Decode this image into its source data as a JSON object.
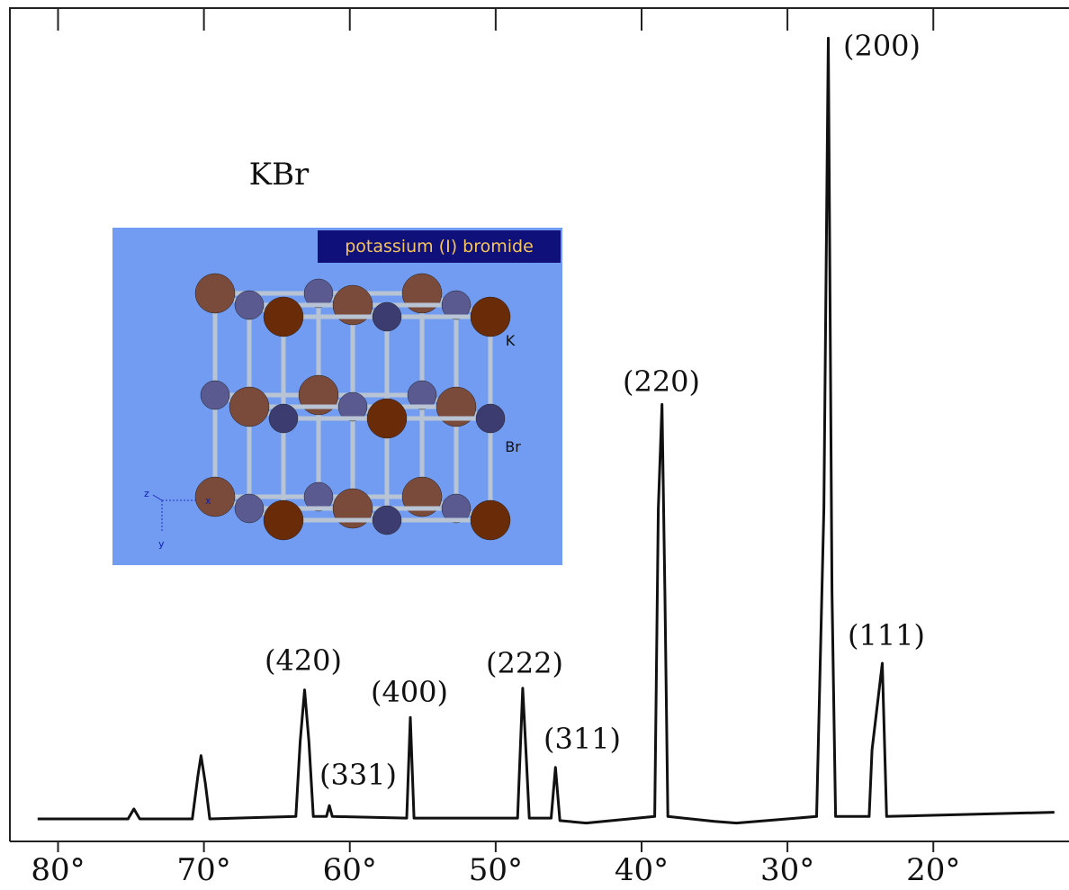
{
  "chart_data": {
    "type": "line",
    "title": "KBr",
    "color": "#111111",
    "x": [
      81.4,
      75.2,
      74.8,
      74.4,
      70.8,
      70.4,
      70.2,
      69.9,
      69.6,
      63.7,
      63.4,
      63.1,
      62.8,
      62.5,
      61.6,
      61.4,
      61.2,
      56.1,
      55.85,
      55.6,
      48.5,
      48.15,
      47.9,
      47.7,
      46.2,
      45.9,
      45.6,
      43.8,
      39.1,
      38.85,
      38.6,
      38.4,
      38.2,
      35,
      33.5,
      28,
      27.5,
      27.2,
      26.95,
      26.7,
      24.4,
      24.2,
      23.5,
      23.2,
      11.7
    ],
    "values": [
      2.7,
      2.7,
      3.9,
      2.7,
      2.7,
      8,
      10.3,
      7,
      2.7,
      3,
      12,
      18.2,
      12,
      3,
      3,
      4.3,
      3,
      2.8,
      14.9,
      2.8,
      2.8,
      18.4,
      10,
      2.8,
      2.8,
      8.9,
      2.5,
      2.2,
      3,
      40,
      52.5,
      30,
      3,
      2.4,
      2.2,
      3,
      40,
      96.5,
      30,
      3,
      3,
      11,
      21.4,
      3,
      3.5
    ],
    "xlim": [
      83.3,
      10.7
    ],
    "ylim": [
      0,
      100
    ],
    "xticks": [
      {
        "value": 80,
        "label": "80°"
      },
      {
        "value": 70,
        "label": "70°"
      },
      {
        "value": 60,
        "label": "60°"
      },
      {
        "value": 50,
        "label": "50°"
      },
      {
        "value": 40,
        "label": "40°"
      },
      {
        "value": 30,
        "label": "30°"
      },
      {
        "value": 20,
        "label": "20°"
      }
    ],
    "annotations": [
      "(200)",
      "(220)",
      "(111)",
      "(222)",
      "(311)",
      "(400)",
      "(420)",
      "(331)"
    ]
  },
  "inset": {
    "title": "potassium (I) bromide",
    "atom_labels": [
      "K",
      "Br"
    ],
    "axis_labels": [
      "x",
      "y",
      "z"
    ]
  }
}
